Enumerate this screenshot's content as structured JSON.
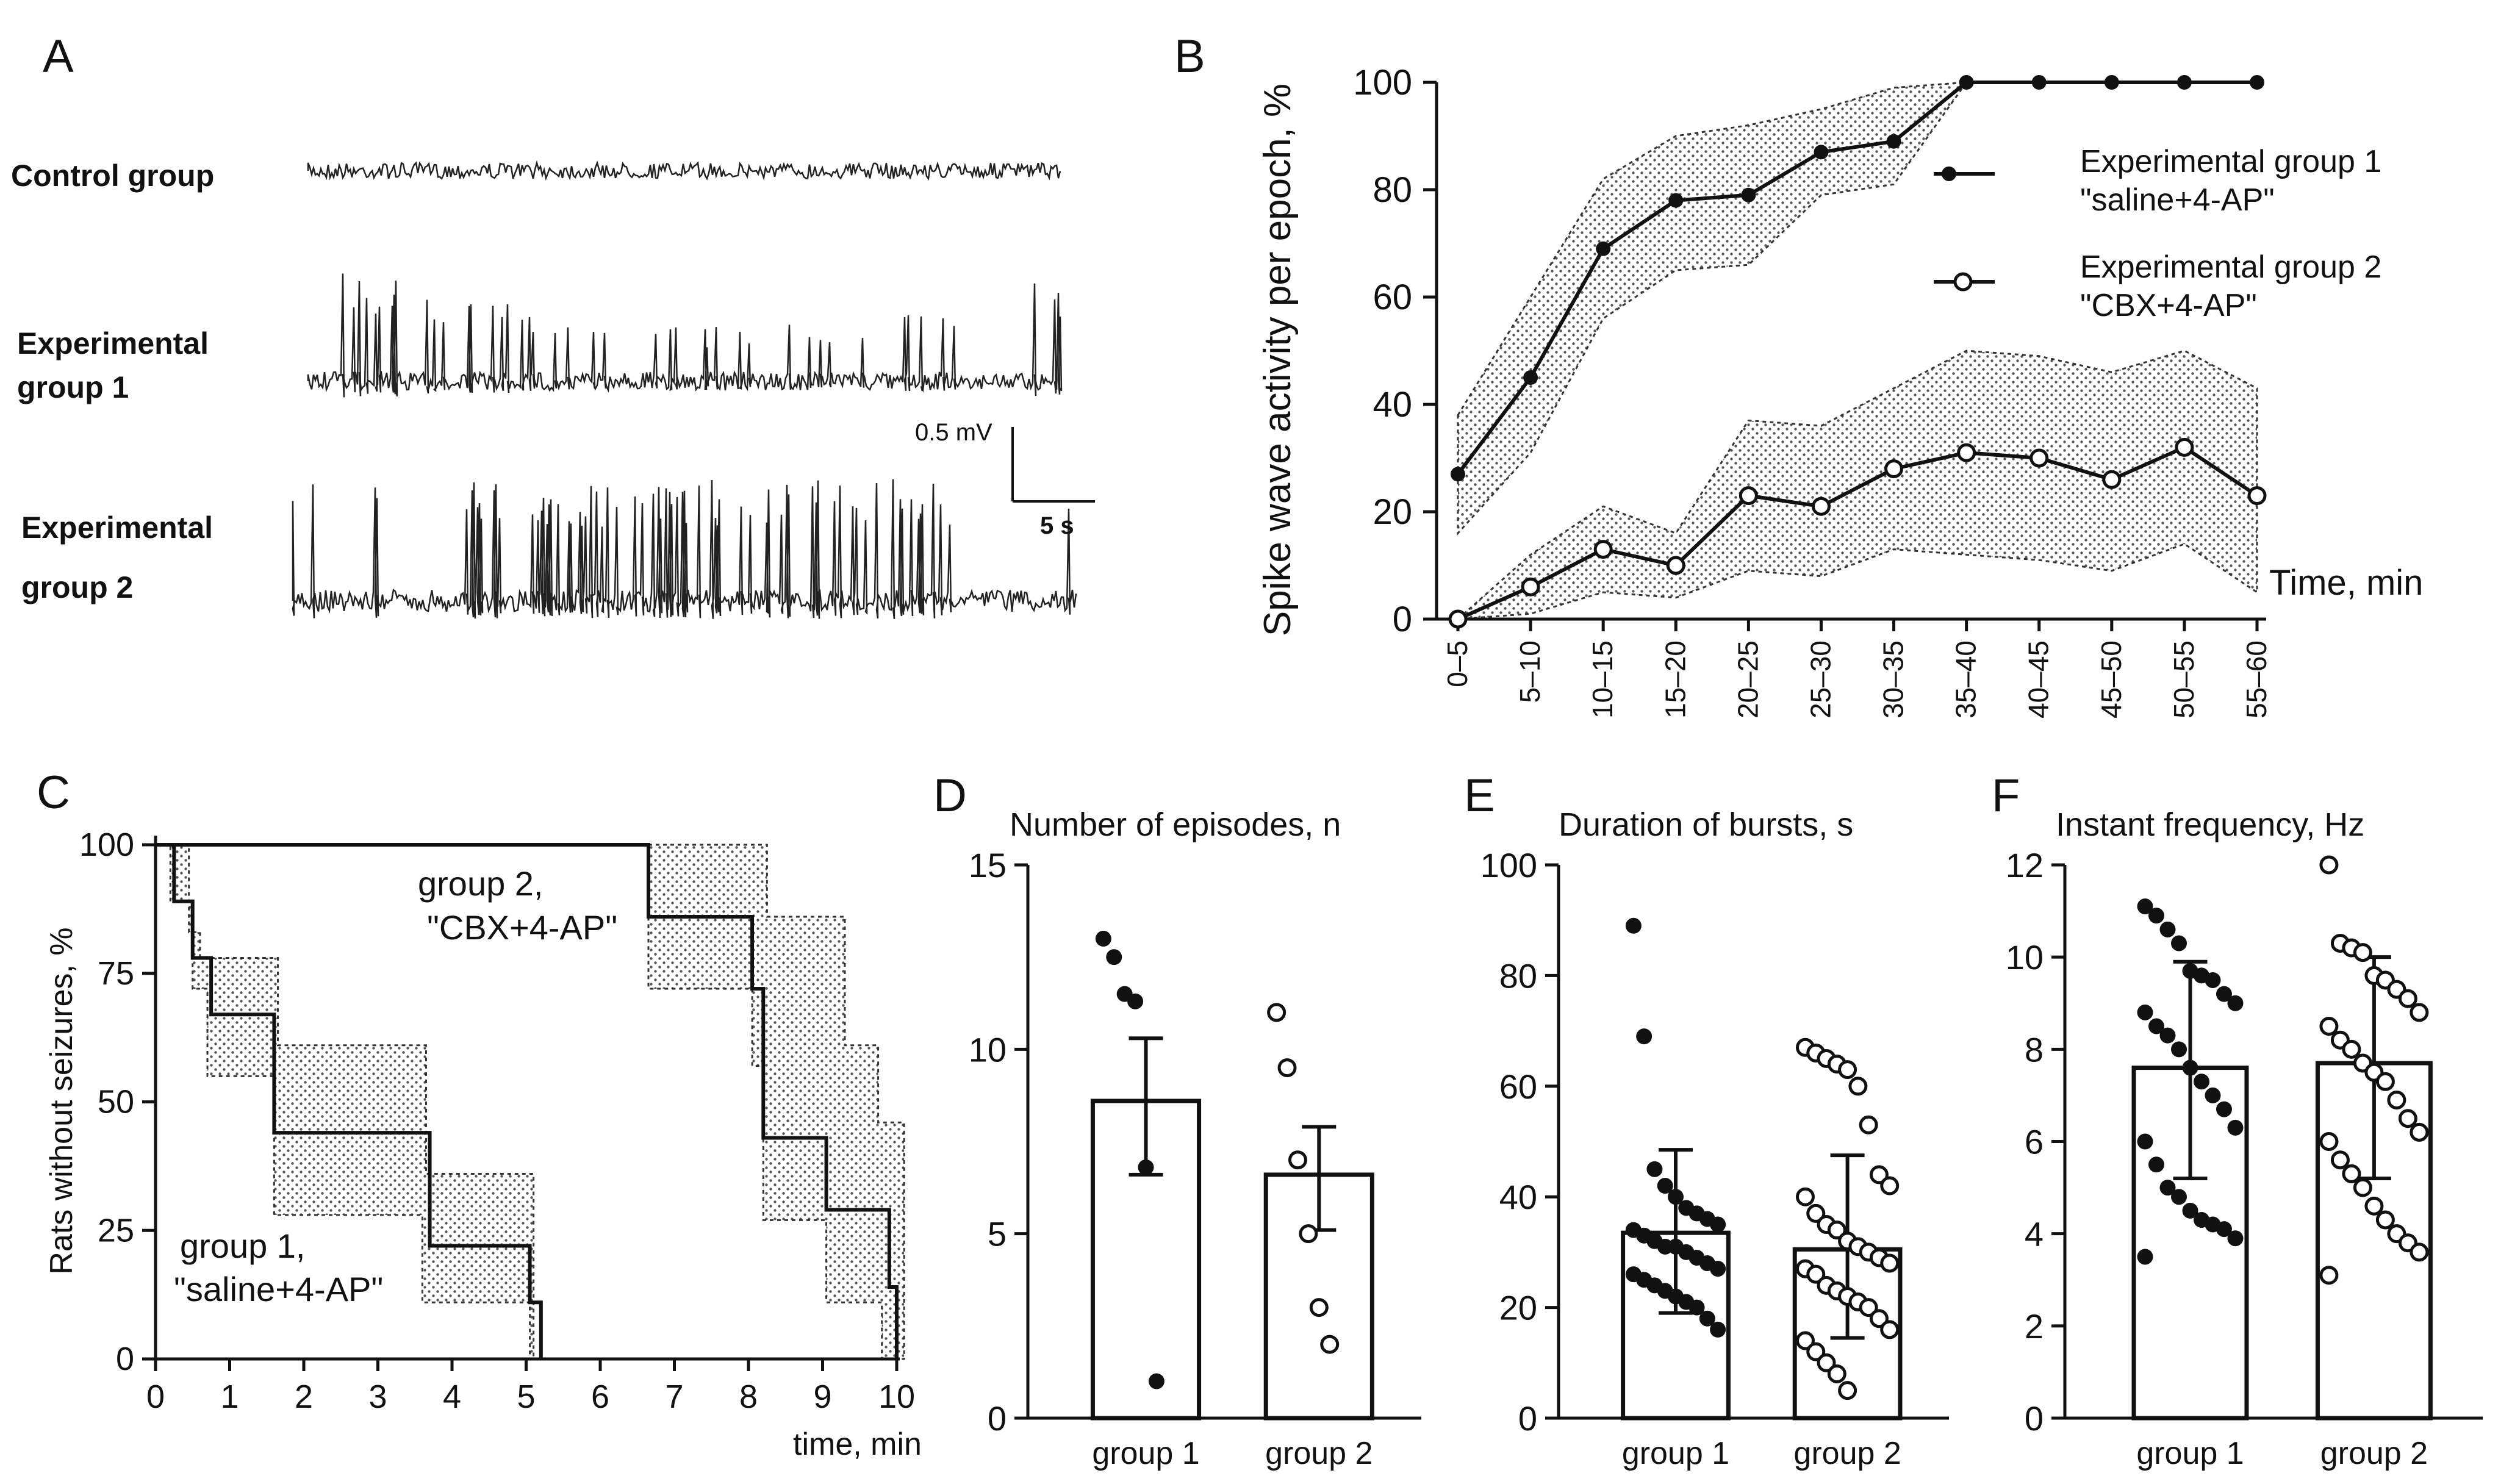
{
  "panel_letters": [
    "A",
    "B",
    "C",
    "D",
    "E",
    "F"
  ],
  "trace_panel": {
    "rows": [
      {
        "label_lines": [
          "Control group"
        ]
      },
      {
        "label_lines": [
          "Experimental",
          "group 1"
        ]
      },
      {
        "label_lines": [
          "Experimental",
          "group 2"
        ]
      }
    ],
    "scale_bar": {
      "voltage": "0.5 mV",
      "time": "5 s"
    }
  },
  "chart_data": [
    {
      "panel": "B",
      "type": "line",
      "ylabel": "Spike wave activity per epoch, %",
      "xlabel": "Time, min",
      "categories": [
        "0–5",
        "5–10",
        "10–15",
        "15–20",
        "20–25",
        "25–30",
        "30–35",
        "35–40",
        "40–45",
        "45–50",
        "50–55",
        "55–60"
      ],
      "ylim": [
        0,
        100
      ],
      "yticks": [
        0,
        20,
        40,
        60,
        80,
        100
      ],
      "series": [
        {
          "name": "Experimental group 1 \"saline+4-AP\"",
          "marker": "filled",
          "values": [
            27,
            45,
            69,
            78,
            79,
            87,
            89,
            100,
            100,
            100,
            100,
            100
          ],
          "band_upper": [
            38,
            60,
            82,
            90,
            92,
            95,
            99,
            100,
            null,
            null,
            null,
            null
          ],
          "band_lower": [
            16,
            31,
            56,
            65,
            66,
            79,
            81,
            100,
            null,
            null,
            null,
            null
          ]
        },
        {
          "name": "Experimental group 2 \"CBX+4-AP\"",
          "marker": "open",
          "values": [
            0,
            6,
            13,
            10,
            23,
            21,
            28,
            31,
            30,
            26,
            32,
            23
          ],
          "band_upper": [
            0,
            12,
            21,
            16,
            37,
            36,
            43,
            50,
            49,
            46,
            50,
            43
          ],
          "band_lower": [
            0,
            1,
            5,
            4,
            9,
            8,
            13,
            12,
            11,
            9,
            14,
            5
          ]
        }
      ],
      "legend": "right"
    },
    {
      "panel": "C",
      "type": "line",
      "ylabel": "Rats without seizures, %",
      "xlabel": "time, min",
      "xlim": [
        0,
        10
      ],
      "ylim": [
        0,
        100
      ],
      "xticks": [
        0,
        1,
        2,
        3,
        4,
        5,
        6,
        7,
        8,
        9,
        10
      ],
      "yticks": [
        0,
        25,
        50,
        75,
        100
      ],
      "series": [
        {
          "name": "group 1, \"saline+4-AP\"",
          "steps": [
            [
              0,
              100
            ],
            [
              0.25,
              89
            ],
            [
              0.5,
              78
            ],
            [
              0.75,
              67
            ],
            [
              1.6,
              44
            ],
            [
              3.7,
              22
            ],
            [
              5.05,
              11
            ],
            [
              5.2,
              0
            ]
          ],
          "band": [
            [
              0.3,
              100
            ],
            [
              0.45,
              83
            ],
            [
              0.6,
              78
            ],
            [
              1.65,
              61
            ],
            [
              3.65,
              36
            ],
            [
              5.1,
              22
            ]
          ],
          "band_lower": [
            [
              0.2,
              89
            ],
            [
              0.5,
              72
            ],
            [
              0.7,
              55
            ],
            [
              1.6,
              28
            ],
            [
              3.6,
              11
            ],
            [
              5.05,
              0
            ]
          ],
          "label_lines": [
            "group 1,",
            "\"saline+4-AP\""
          ]
        },
        {
          "name": "group 2, \"CBX+4-AP\"",
          "steps": [
            [
              0,
              100
            ],
            [
              6.65,
              86
            ],
            [
              8.05,
              72
            ],
            [
              8.2,
              43
            ],
            [
              9.05,
              29
            ],
            [
              9.9,
              14
            ],
            [
              10,
              0
            ]
          ],
          "band": [
            [
              7.7,
              100
            ],
            [
              8.25,
              86
            ],
            [
              9.3,
              61
            ],
            [
              9.75,
              46
            ],
            [
              10.1,
              29
            ]
          ],
          "band_lower": [
            [
              6.65,
              72
            ],
            [
              8.05,
              57
            ],
            [
              8.2,
              27
            ],
            [
              9.05,
              11
            ],
            [
              9.8,
              0
            ]
          ],
          "label_lines": [
            "group 2,",
            "\"CBX+4-AP\""
          ]
        }
      ]
    },
    {
      "panel": "D",
      "type": "bar",
      "title": "Number of episodes, n",
      "categories": [
        "group 1",
        "group 2"
      ],
      "values": [
        8.6,
        6.6
      ],
      "error_upper": [
        10.3,
        7.9
      ],
      "error_lower": [
        6.6,
        5.1
      ],
      "points": [
        [
          13,
          12.5,
          11.5,
          11.3,
          6.8,
          1
        ],
        [
          11,
          9.5,
          7,
          5,
          3,
          2
        ]
      ],
      "ylim": [
        0,
        15
      ],
      "yticks": [
        0,
        5,
        10,
        15
      ]
    },
    {
      "panel": "E",
      "type": "bar",
      "title": "Duration of bursts, s",
      "categories": [
        "group 1",
        "group 2"
      ],
      "values": [
        33.5,
        30.5
      ],
      "error_upper": [
        48.5,
        47.5
      ],
      "error_lower": [
        19,
        14.5
      ],
      "points": [
        [
          89,
          69,
          45,
          42,
          40,
          38,
          37,
          36,
          35,
          34,
          33,
          32,
          31,
          31,
          30,
          29,
          28,
          27,
          26,
          25,
          24,
          23,
          22,
          21,
          20,
          18,
          16
        ],
        [
          67,
          66,
          65,
          64,
          63,
          60,
          53,
          44,
          42,
          40,
          37,
          35,
          34,
          32,
          31,
          30,
          29,
          28,
          27,
          26,
          24,
          23,
          22,
          21,
          20,
          18,
          16,
          14,
          12,
          10,
          8,
          5
        ]
      ],
      "ylim": [
        0,
        100
      ],
      "yticks": [
        0,
        20,
        40,
        60,
        80,
        100
      ]
    },
    {
      "panel": "F",
      "type": "bar",
      "title": "Instant frequency, Hz",
      "categories": [
        "group 1",
        "group 2"
      ],
      "values": [
        7.6,
        7.7
      ],
      "error_upper": [
        9.9,
        10.0
      ],
      "error_lower": [
        5.2,
        5.2
      ],
      "points": [
        [
          11.1,
          10.9,
          10.6,
          10.3,
          9.7,
          9.6,
          9.5,
          9.2,
          9.0,
          8.8,
          8.5,
          8.3,
          8.0,
          7.6,
          7.3,
          7.0,
          6.7,
          6.3,
          6.0,
          5.5,
          5.0,
          4.8,
          4.5,
          4.3,
          4.2,
          4.1,
          3.9,
          3.5
        ],
        [
          12.0,
          10.3,
          10.2,
          10.1,
          9.6,
          9.5,
          9.3,
          9.1,
          8.8,
          8.5,
          8.2,
          8.0,
          7.7,
          7.5,
          7.3,
          6.9,
          6.5,
          6.2,
          6.0,
          5.6,
          5.3,
          5.0,
          4.6,
          4.3,
          4.0,
          3.8,
          3.6,
          3.1
        ]
      ],
      "ylim": [
        0,
        12
      ],
      "yticks": [
        0,
        2,
        4,
        6,
        8,
        10,
        12
      ]
    }
  ]
}
